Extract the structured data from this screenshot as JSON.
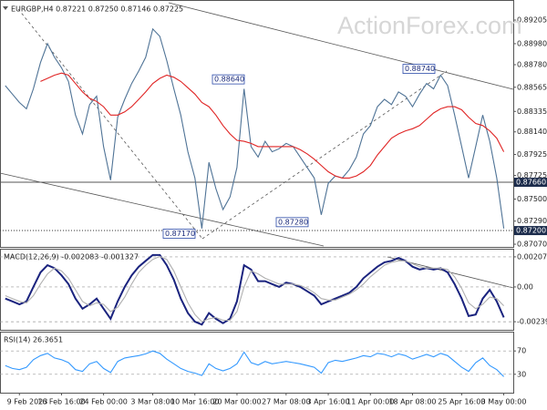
{
  "chart_data": [
    {
      "type": "line",
      "title": "EURGBP,H4 0.87221 0.87250 0.87146 0.87225",
      "watermark": "ActionForex.com",
      "categories": [
        null,
        null,
        "9 Feb 2023",
        null,
        null,
        null,
        null,
        null,
        "16 Feb 16:00",
        null,
        null,
        null,
        null,
        null,
        "24 Feb 00:00",
        null,
        null,
        null,
        null,
        null,
        null,
        "3 Mar 08:00",
        null,
        null,
        null,
        null,
        null,
        "10 Mar 16:00",
        null,
        null,
        null,
        null,
        null,
        "20 Mar 00:00",
        null,
        null,
        null,
        null,
        null,
        null,
        "27 Mar 08:00",
        null,
        null,
        null,
        null,
        null,
        "3 Apr 16:00",
        null,
        null,
        null,
        null,
        null,
        "11 Apr 00:00",
        null,
        null,
        null,
        null,
        null,
        "18 Apr 08:00",
        null,
        null,
        null,
        null,
        null,
        null,
        "25 Apr 16:00",
        null,
        null,
        null,
        null,
        null,
        "3 May 00:00"
      ],
      "series": [
        {
          "name": "EURGBP",
          "color": "#4f7396",
          "values": [
            0.8858,
            0.885,
            0.8842,
            0.8836,
            0.8855,
            0.888,
            0.8898,
            0.8885,
            0.8875,
            0.8862,
            0.883,
            0.8812,
            0.884,
            0.8848,
            0.88,
            0.8768,
            0.8828,
            0.8845,
            0.886,
            0.8872,
            0.8885,
            0.8912,
            0.8905,
            0.8882,
            0.8855,
            0.883,
            0.8795,
            0.877,
            0.8722,
            0.8785,
            0.876,
            0.874,
            0.8752,
            0.878,
            0.8855,
            0.88,
            0.879,
            0.8805,
            0.8795,
            0.8798,
            0.8803,
            0.88,
            0.879,
            0.878,
            0.877,
            0.8735,
            0.8765,
            0.8772,
            0.877,
            0.8778,
            0.879,
            0.8812,
            0.882,
            0.8838,
            0.8845,
            0.884,
            0.8852,
            0.8848,
            0.8838,
            0.885,
            0.886,
            0.8855,
            0.8868,
            0.8858,
            0.883,
            0.88,
            0.877,
            0.88,
            0.883,
            0.8805,
            0.877,
            0.8722
          ]
        },
        {
          "name": "MA",
          "color": "#e02424",
          "values": [
            null,
            null,
            null,
            null,
            null,
            0.8862,
            0.8865,
            0.8868,
            0.887,
            0.8868,
            0.886,
            0.8852,
            0.8846,
            0.8843,
            0.8838,
            0.883,
            0.883,
            0.8833,
            0.8838,
            0.8845,
            0.8852,
            0.886,
            0.8865,
            0.8868,
            0.8866,
            0.8862,
            0.8856,
            0.885,
            0.8842,
            0.8838,
            0.883,
            0.882,
            0.8812,
            0.8806,
            0.8805,
            0.8803,
            0.88,
            0.88,
            0.88,
            0.88,
            0.88,
            0.88,
            0.8797,
            0.8793,
            0.8788,
            0.8782,
            0.8776,
            0.8772,
            0.877,
            0.877,
            0.8772,
            0.8776,
            0.8782,
            0.8792,
            0.88,
            0.8808,
            0.8812,
            0.8815,
            0.8817,
            0.882,
            0.8826,
            0.8832,
            0.8836,
            0.8838,
            0.8838,
            0.8835,
            0.8828,
            0.8822,
            0.882,
            0.8815,
            0.8808,
            0.8795
          ]
        }
      ],
      "ylim": [
        0.87053,
        0.8937
      ],
      "yticks": [
        0.89205,
        {
          "value": 0.8898,
          "label": "0.88980"
        },
        {
          "value": 0.8878,
          "label": "0.88780"
        },
        0.88565,
        0.88335,
        {
          "value": 0.8814,
          "label": "0.88140"
        },
        0.87925,
        0.87725,
        {
          "value": 0.875,
          "label": "0.87500"
        },
        {
          "value": 0.8729,
          "label": "0.87290"
        },
        {
          "value": 0.8707,
          "label": "0.87070"
        }
      ],
      "annotations": [
        {
          "value": 0.8864,
          "label": "0.88640"
        },
        {
          "value": 0.8728,
          "label": "0.87280"
        },
        {
          "value": 0.8717,
          "label": "0.87170"
        },
        {
          "value": 0.8874,
          "label": "0.88740"
        }
      ],
      "levels": [
        {
          "value": 0.8766,
          "label": "0.87660",
          "color": "#1c2c4c",
          "style": "solid"
        },
        {
          "value": 0.872,
          "label": "0.87200",
          "color": "#1c2c4c",
          "style": "dotted"
        }
      ],
      "grid": false
    },
    {
      "type": "line",
      "title": "MACD(12,26,9) -0.002083 -0.001327",
      "series": [
        {
          "name": "MACD",
          "color": "#1a237e",
          "values": [
            -0.0008,
            -0.001,
            -0.0012,
            -0.001,
            0,
            0.001,
            0.0015,
            0.0013,
            0.0008,
            0.0002,
            -0.0008,
            -0.0015,
            -0.0012,
            -0.0008,
            -0.0015,
            -0.0022,
            -0.001,
            0,
            0.0008,
            0.0014,
            0.0018,
            0.0022,
            0.0022,
            0.0015,
            0.0005,
            -0.0008,
            -0.0018,
            -0.0024,
            -0.0026,
            -0.0018,
            -0.0022,
            -0.0025,
            -0.0022,
            -0.001,
            0.0015,
            0.0012,
            0.0004,
            0.0004,
            0.0002,
            0,
            0.0003,
            0.0002,
            0,
            -0.0003,
            -0.0006,
            -0.0012,
            -0.001,
            -0.0008,
            -0.0006,
            -0.0004,
            0,
            0.0006,
            0.001,
            0.0014,
            0.0017,
            0.0018,
            0.002,
            0.0018,
            0.0014,
            0.0012,
            0.0013,
            0.0012,
            0.0013,
            0.001,
            0.0002,
            -0.0008,
            -0.002,
            -0.0019,
            -0.0008,
            -0.0002,
            -0.001,
            -0.0021
          ]
        },
        {
          "name": "Signal",
          "color": "#b0b0b0",
          "values": [
            -0.0006,
            -0.0008,
            -0.001,
            -0.0011,
            -0.0006,
            0.0002,
            0.0009,
            0.0013,
            0.0011,
            0.0006,
            -0.0002,
            -0.001,
            -0.0013,
            -0.0011,
            -0.0012,
            -0.0017,
            -0.0014,
            -0.0007,
            0.0002,
            0.001,
            0.0015,
            0.0019,
            0.0021,
            0.0019,
            0.0011,
            0,
            -0.0011,
            -0.0019,
            -0.0024,
            -0.0022,
            -0.0021,
            -0.0023,
            -0.0023,
            -0.0017,
            0,
            0.0011,
            0.0009,
            0.0006,
            0.0004,
            0.0002,
            0.0002,
            0.0002,
            0.0001,
            -0.0001,
            -0.0004,
            -0.0008,
            -0.0009,
            -0.0009,
            -0.0007,
            -0.0005,
            -0.0002,
            0.0002,
            0.0007,
            0.0011,
            0.0015,
            0.0017,
            0.0018,
            0.0018,
            0.0016,
            0.0014,
            0.0013,
            0.0013,
            0.0013,
            0.0012,
            0.0007,
            -0.0001,
            -0.0011,
            -0.0015,
            -0.0012,
            -0.0007,
            -0.0008,
            -0.0013
          ]
        }
      ],
      "ylim": [
        -0.002895,
        0.00251
      ],
      "yticks": [
        0.002075,
        {
          "value": 0,
          "label": "0.00"
        },
        -0.002398
      ],
      "grid": true
    },
    {
      "type": "line",
      "title": "RSI(14) 26.3651",
      "series": [
        {
          "name": "RSI",
          "color": "#3399ff",
          "values": [
            45,
            40,
            38,
            42,
            55,
            62,
            66,
            58,
            55,
            50,
            38,
            35,
            48,
            52,
            40,
            33,
            52,
            58,
            60,
            62,
            65,
            70,
            66,
            56,
            48,
            40,
            35,
            32,
            28,
            48,
            40,
            36,
            40,
            48,
            68,
            50,
            46,
            52,
            48,
            50,
            52,
            50,
            48,
            45,
            42,
            32,
            50,
            54,
            52,
            55,
            58,
            62,
            60,
            66,
            64,
            60,
            65,
            62,
            56,
            60,
            64,
            60,
            66,
            62,
            52,
            42,
            35,
            50,
            58,
            45,
            38,
            26
          ]
        }
      ],
      "ylim": [
        0,
        100
      ],
      "yticks": [
        70,
        30
      ],
      "grid": true
    }
  ]
}
